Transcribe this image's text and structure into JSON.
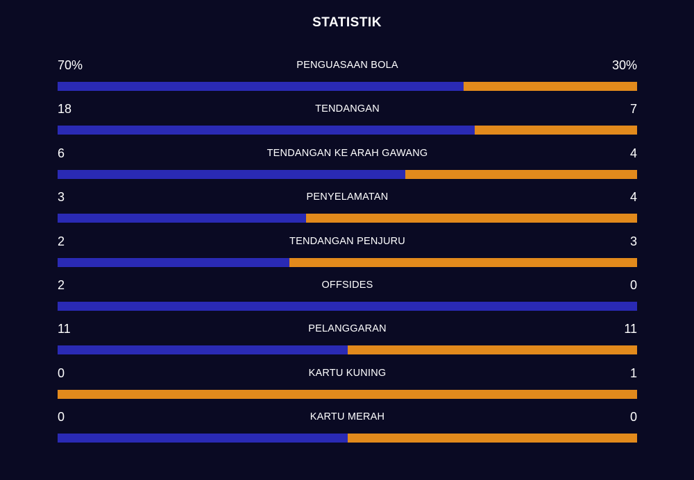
{
  "title": "STATISTIK",
  "colors": {
    "background": "#0a0a23",
    "home": "#2a2ab4",
    "away": "#e28a1c"
  },
  "chart_data": {
    "type": "bar",
    "title": "STATISTIK",
    "categories": [
      "PENGUASAAN BOLA",
      "TENDANGAN",
      "TENDANGAN KE ARAH GAWANG",
      "PENYELAMATAN",
      "TENDANGAN PENJURU",
      "OFFSIDES",
      "PELANGGARAN",
      "KARTU KUNING",
      "KARTU MERAH"
    ],
    "rows": [
      {
        "label": "PENGUASAAN BOLA",
        "home": 70,
        "away": 30,
        "home_display": "70%",
        "away_display": "30%"
      },
      {
        "label": "TENDANGAN",
        "home": 18,
        "away": 7,
        "home_display": "18",
        "away_display": "7"
      },
      {
        "label": "TENDANGAN KE ARAH GAWANG",
        "home": 6,
        "away": 4,
        "home_display": "6",
        "away_display": "4"
      },
      {
        "label": "PENYELAMATAN",
        "home": 3,
        "away": 4,
        "home_display": "3",
        "away_display": "4"
      },
      {
        "label": "TENDANGAN PENJURU",
        "home": 2,
        "away": 3,
        "home_display": "2",
        "away_display": "3"
      },
      {
        "label": "OFFSIDES",
        "home": 2,
        "away": 0,
        "home_display": "2",
        "away_display": "0"
      },
      {
        "label": "PELANGGARAN",
        "home": 11,
        "away": 11,
        "home_display": "11",
        "away_display": "11"
      },
      {
        "label": "KARTU KUNING",
        "home": 0,
        "away": 1,
        "home_display": "0",
        "away_display": "1"
      },
      {
        "label": "KARTU MERAH",
        "home": 0,
        "away": 0,
        "home_display": "0",
        "away_display": "0"
      }
    ]
  }
}
